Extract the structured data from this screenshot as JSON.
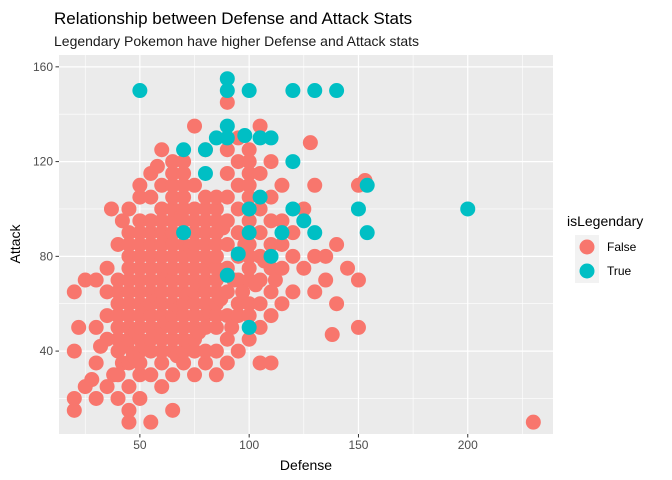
{
  "chart_data": {
    "type": "scatter",
    "title": "Relationship between Defense and Attack Stats",
    "subtitle": "Legendary Pokemon have higher Defense and Attack stats",
    "xlabel": "Defense",
    "ylabel": "Attack",
    "xlim": [
      13,
      239
    ],
    "ylim": [
      5,
      165
    ],
    "x_ticks": [
      50,
      100,
      150,
      200
    ],
    "y_ticks": [
      40,
      80,
      120,
      160
    ],
    "grid": true,
    "legend": {
      "title": "isLegendary",
      "position": "right"
    },
    "series": [
      {
        "name": "False",
        "color": "#F8766D",
        "points": [
          [
            20,
            15
          ],
          [
            20,
            20
          ],
          [
            20,
            40
          ],
          [
            20,
            65
          ],
          [
            22,
            50
          ],
          [
            25,
            25
          ],
          [
            25,
            70
          ],
          [
            28,
            28
          ],
          [
            30,
            20
          ],
          [
            30,
            35
          ],
          [
            30,
            50
          ],
          [
            30,
            70
          ],
          [
            32,
            42
          ],
          [
            35,
            25
          ],
          [
            35,
            45
          ],
          [
            35,
            55
          ],
          [
            35,
            65
          ],
          [
            35,
            75
          ],
          [
            37,
            100
          ],
          [
            38,
            30
          ],
          [
            40,
            20
          ],
          [
            40,
            30
          ],
          [
            40,
            40
          ],
          [
            40,
            45
          ],
          [
            40,
            50
          ],
          [
            40,
            55
          ],
          [
            40,
            60
          ],
          [
            40,
            65
          ],
          [
            40,
            70
          ],
          [
            40,
            85
          ],
          [
            42,
            35
          ],
          [
            42,
            95
          ],
          [
            44,
            42
          ],
          [
            45,
            10
          ],
          [
            45,
            15
          ],
          [
            45,
            25
          ],
          [
            45,
            35
          ],
          [
            45,
            45
          ],
          [
            45,
            50
          ],
          [
            45,
            55
          ],
          [
            45,
            60
          ],
          [
            45,
            65
          ],
          [
            45,
            70
          ],
          [
            45,
            75
          ],
          [
            45,
            80
          ],
          [
            45,
            85
          ],
          [
            45,
            90
          ],
          [
            45,
            100
          ],
          [
            47,
            38
          ],
          [
            48,
            48
          ],
          [
            50,
            20
          ],
          [
            50,
            30
          ],
          [
            50,
            35
          ],
          [
            50,
            40
          ],
          [
            50,
            45
          ],
          [
            50,
            50
          ],
          [
            50,
            55
          ],
          [
            50,
            60
          ],
          [
            50,
            65
          ],
          [
            50,
            70
          ],
          [
            50,
            75
          ],
          [
            50,
            80
          ],
          [
            50,
            85
          ],
          [
            50,
            90
          ],
          [
            50,
            95
          ],
          [
            50,
            105
          ],
          [
            50,
            110
          ],
          [
            52,
            42
          ],
          [
            53,
            58
          ],
          [
            55,
            10
          ],
          [
            55,
            30
          ],
          [
            55,
            40
          ],
          [
            55,
            45
          ],
          [
            55,
            50
          ],
          [
            55,
            55
          ],
          [
            55,
            60
          ],
          [
            55,
            65
          ],
          [
            55,
            70
          ],
          [
            55,
            75
          ],
          [
            55,
            80
          ],
          [
            55,
            85
          ],
          [
            55,
            90
          ],
          [
            55,
            95
          ],
          [
            55,
            105
          ],
          [
            55,
            115
          ],
          [
            57,
            48
          ],
          [
            58,
            62
          ],
          [
            58,
            118
          ],
          [
            60,
            25
          ],
          [
            60,
            35
          ],
          [
            60,
            40
          ],
          [
            60,
            45
          ],
          [
            60,
            50
          ],
          [
            60,
            55
          ],
          [
            60,
            60
          ],
          [
            60,
            65
          ],
          [
            60,
            70
          ],
          [
            60,
            75
          ],
          [
            60,
            80
          ],
          [
            60,
            85
          ],
          [
            60,
            90
          ],
          [
            60,
            95
          ],
          [
            60,
            100
          ],
          [
            60,
            110
          ],
          [
            60,
            125
          ],
          [
            62,
            52
          ],
          [
            63,
            72
          ],
          [
            64,
            88
          ],
          [
            65,
            15
          ],
          [
            65,
            30
          ],
          [
            65,
            40
          ],
          [
            65,
            45
          ],
          [
            65,
            50
          ],
          [
            65,
            55
          ],
          [
            65,
            60
          ],
          [
            65,
            65
          ],
          [
            65,
            70
          ],
          [
            65,
            75
          ],
          [
            65,
            80
          ],
          [
            65,
            85
          ],
          [
            65,
            90
          ],
          [
            65,
            95
          ],
          [
            65,
            100
          ],
          [
            65,
            105
          ],
          [
            65,
            110
          ],
          [
            65,
            115
          ],
          [
            65,
            120
          ],
          [
            67,
            38
          ],
          [
            68,
            58
          ],
          [
            69,
            97
          ],
          [
            70,
            35
          ],
          [
            70,
            40
          ],
          [
            70,
            45
          ],
          [
            70,
            50
          ],
          [
            70,
            55
          ],
          [
            70,
            60
          ],
          [
            70,
            65
          ],
          [
            70,
            70
          ],
          [
            70,
            75
          ],
          [
            70,
            80
          ],
          [
            70,
            85
          ],
          [
            70,
            90
          ],
          [
            70,
            95
          ],
          [
            70,
            100
          ],
          [
            70,
            105
          ],
          [
            70,
            110
          ],
          [
            70,
            115
          ],
          [
            70,
            120
          ],
          [
            72,
            44
          ],
          [
            72,
            64
          ],
          [
            73,
            84
          ],
          [
            75,
            30
          ],
          [
            75,
            40
          ],
          [
            75,
            45
          ],
          [
            75,
            50
          ],
          [
            75,
            55
          ],
          [
            75,
            60
          ],
          [
            75,
            65
          ],
          [
            75,
            70
          ],
          [
            75,
            75
          ],
          [
            75,
            80
          ],
          [
            75,
            85
          ],
          [
            75,
            90
          ],
          [
            75,
            95
          ],
          [
            75,
            100
          ],
          [
            75,
            110
          ],
          [
            75,
            135
          ],
          [
            77,
            48
          ],
          [
            78,
            68
          ],
          [
            80,
            35
          ],
          [
            80,
            40
          ],
          [
            80,
            50
          ],
          [
            80,
            55
          ],
          [
            80,
            60
          ],
          [
            80,
            65
          ],
          [
            80,
            70
          ],
          [
            80,
            75
          ],
          [
            80,
            80
          ],
          [
            80,
            85
          ],
          [
            80,
            90
          ],
          [
            80,
            95
          ],
          [
            80,
            100
          ],
          [
            80,
            105
          ],
          [
            80,
            125
          ],
          [
            82,
            56
          ],
          [
            83,
            78
          ],
          [
            85,
            30
          ],
          [
            85,
            40
          ],
          [
            85,
            50
          ],
          [
            85,
            55
          ],
          [
            85,
            60
          ],
          [
            85,
            65
          ],
          [
            85,
            70
          ],
          [
            85,
            75
          ],
          [
            85,
            80
          ],
          [
            85,
            85
          ],
          [
            85,
            90
          ],
          [
            85,
            95
          ],
          [
            85,
            100
          ],
          [
            85,
            105
          ],
          [
            87,
            62
          ],
          [
            88,
            92
          ],
          [
            90,
            35
          ],
          [
            90,
            45
          ],
          [
            90,
            55
          ],
          [
            90,
            65
          ],
          [
            90,
            75
          ],
          [
            90,
            85
          ],
          [
            90,
            95
          ],
          [
            90,
            105
          ],
          [
            90,
            115
          ],
          [
            90,
            125
          ],
          [
            90,
            145
          ],
          [
            92,
            50
          ],
          [
            93,
            70
          ],
          [
            95,
            40
          ],
          [
            95,
            55
          ],
          [
            95,
            60
          ],
          [
            95,
            70
          ],
          [
            95,
            80
          ],
          [
            95,
            90
          ],
          [
            95,
            100
          ],
          [
            95,
            110
          ],
          [
            95,
            120
          ],
          [
            95,
            130
          ],
          [
            97,
            65
          ],
          [
            98,
            85
          ],
          [
            100,
            45
          ],
          [
            100,
            55
          ],
          [
            100,
            60
          ],
          [
            100,
            70
          ],
          [
            100,
            75
          ],
          [
            100,
            80
          ],
          [
            100,
            85
          ],
          [
            100,
            90
          ],
          [
            100,
            95
          ],
          [
            100,
            100
          ],
          [
            100,
            105
          ],
          [
            100,
            110
          ],
          [
            100,
            115
          ],
          [
            100,
            120
          ],
          [
            100,
            125
          ],
          [
            103,
            68
          ],
          [
            105,
            35
          ],
          [
            105,
            50
          ],
          [
            105,
            60
          ],
          [
            105,
            70
          ],
          [
            105,
            80
          ],
          [
            105,
            90
          ],
          [
            105,
            100
          ],
          [
            105,
            115
          ],
          [
            105,
            135
          ],
          [
            107,
            78
          ],
          [
            110,
            35
          ],
          [
            110,
            55
          ],
          [
            110,
            65
          ],
          [
            110,
            75
          ],
          [
            110,
            85
          ],
          [
            110,
            95
          ],
          [
            110,
            105
          ],
          [
            110,
            120
          ],
          [
            112,
            70
          ],
          [
            115,
            60
          ],
          [
            115,
            75
          ],
          [
            115,
            85
          ],
          [
            115,
            95
          ],
          [
            115,
            110
          ],
          [
            120,
            65
          ],
          [
            120,
            80
          ],
          [
            120,
            90
          ],
          [
            125,
            75
          ],
          [
            125,
            100
          ],
          [
            128,
            128
          ],
          [
            130,
            65
          ],
          [
            130,
            80
          ],
          [
            130,
            110
          ],
          [
            135,
            70
          ],
          [
            135,
            80
          ],
          [
            138,
            47
          ],
          [
            140,
            60
          ],
          [
            140,
            85
          ],
          [
            145,
            75
          ],
          [
            150,
            50
          ],
          [
            150,
            70
          ],
          [
            150,
            110
          ],
          [
            153,
            112
          ],
          [
            230,
            10
          ]
        ]
      },
      {
        "name": "True",
        "color": "#00BFC4",
        "points": [
          [
            50,
            150
          ],
          [
            70,
            90
          ],
          [
            70,
            125
          ],
          [
            80,
            125
          ],
          [
            80,
            115
          ],
          [
            85,
            130
          ],
          [
            90,
            150
          ],
          [
            90,
            155
          ],
          [
            90,
            135
          ],
          [
            90,
            130
          ],
          [
            90,
            72
          ],
          [
            95,
            81
          ],
          [
            98,
            131
          ],
          [
            100,
            150
          ],
          [
            100,
            50
          ],
          [
            100,
            90
          ],
          [
            100,
            100
          ],
          [
            105,
            105
          ],
          [
            105,
            130
          ],
          [
            110,
            130
          ],
          [
            110,
            80
          ],
          [
            115,
            90
          ],
          [
            120,
            150
          ],
          [
            120,
            120
          ],
          [
            120,
            100
          ],
          [
            125,
            95
          ],
          [
            130,
            150
          ],
          [
            130,
            90
          ],
          [
            140,
            150
          ],
          [
            150,
            100
          ],
          [
            154,
            90
          ],
          [
            154,
            110
          ],
          [
            200,
            100
          ]
        ]
      }
    ]
  }
}
